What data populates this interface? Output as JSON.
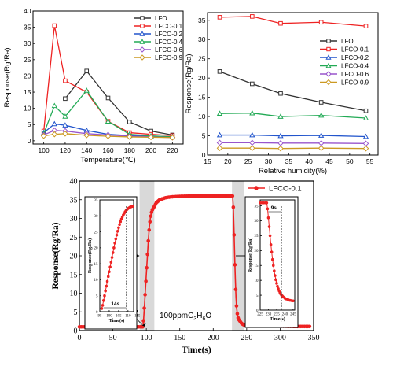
{
  "chart_data": [
    {
      "type": "line",
      "xlabel": "Temperature(℃)",
      "ylabel": "Response(Rg/Ra)",
      "xlim": [
        90,
        230
      ],
      "ylim": [
        -1,
        40
      ],
      "xticks": [
        100,
        120,
        140,
        160,
        180,
        200,
        220
      ],
      "yticks": [
        0,
        5,
        10,
        15,
        20,
        25,
        30,
        35,
        40
      ],
      "legend_position": "top-right",
      "x": [
        100,
        110,
        120,
        140,
        160,
        180,
        200,
        220
      ],
      "series": [
        {
          "name": "LFO",
          "color": "#333333",
          "marker": "square",
          "x": [
            120,
            140,
            160,
            180,
            200,
            220
          ],
          "values": [
            13,
            21.5,
            13.2,
            5.8,
            3,
            1.8
          ]
        },
        {
          "name": "LFCO-0.1",
          "color": "#ee2222",
          "marker": "square",
          "x": [
            100,
            110,
            120,
            140,
            160,
            180,
            200,
            220
          ],
          "values": [
            3,
            35.5,
            18.5,
            15,
            6,
            2.5,
            2,
            1.6
          ]
        },
        {
          "name": "LFCO-0.2",
          "color": "#2255cc",
          "marker": "triangle",
          "x": [
            100,
            110,
            120,
            140,
            160,
            180,
            200,
            220
          ],
          "values": [
            2.5,
            5.2,
            4.8,
            3.2,
            2,
            1.6,
            1.4,
            1.2
          ]
        },
        {
          "name": "LFCO-0.4",
          "color": "#22aa55",
          "marker": "triangle",
          "x": [
            100,
            110,
            120,
            140,
            160,
            180,
            200,
            220
          ],
          "values": [
            2.2,
            10.8,
            7.5,
            15.5,
            6,
            2,
            1.5,
            1.2
          ]
        },
        {
          "name": "LFCO-0.6",
          "color": "#9955cc",
          "marker": "diamond",
          "x": [
            100,
            110,
            120,
            140,
            160,
            180,
            200,
            220
          ],
          "values": [
            1.8,
            3.2,
            3,
            2.2,
            1.8,
            1.4,
            1.2,
            1
          ]
        },
        {
          "name": "LFCO-0.9",
          "color": "#cc9922",
          "marker": "diamond",
          "x": [
            100,
            110,
            120,
            140,
            160,
            180,
            200,
            220
          ],
          "values": [
            1.5,
            2,
            2.2,
            1.7,
            1.4,
            1.2,
            1.1,
            1
          ]
        }
      ]
    },
    {
      "type": "line",
      "xlabel": "Relative humidity(%)",
      "ylabel": "Response(Rg/Ra)",
      "xlim": [
        15,
        57
      ],
      "ylim": [
        0,
        37
      ],
      "xticks": [
        15,
        20,
        25,
        30,
        35,
        40,
        45,
        50,
        55
      ],
      "yticks": [
        0,
        5,
        10,
        15,
        20,
        25,
        30,
        35
      ],
      "legend_position": "right",
      "x": [
        18,
        26,
        33,
        43,
        54
      ],
      "series": [
        {
          "name": "LFO",
          "color": "#333333",
          "marker": "square",
          "values": [
            21.7,
            18.5,
            16,
            13.7,
            11.5
          ]
        },
        {
          "name": "LFCO-0.1",
          "color": "#ee2222",
          "marker": "square",
          "values": [
            35.8,
            36,
            34.2,
            34.5,
            33.5
          ]
        },
        {
          "name": "LFCO-0.2",
          "color": "#2255cc",
          "marker": "triangle",
          "values": [
            5.2,
            5.2,
            5,
            5.1,
            4.8
          ]
        },
        {
          "name": "LFCO-0.4",
          "color": "#22aa55",
          "marker": "triangle",
          "values": [
            10.8,
            10.9,
            10,
            10.3,
            9.6
          ]
        },
        {
          "name": "LFCO-0.6",
          "color": "#9955cc",
          "marker": "diamond",
          "values": [
            3.2,
            3.2,
            3.1,
            3.1,
            3
          ]
        },
        {
          "name": "LFCO-0.9",
          "color": "#cc9922",
          "marker": "diamond",
          "values": [
            1.8,
            1.8,
            1.7,
            1.8,
            1.7
          ]
        }
      ]
    },
    {
      "type": "line",
      "xlabel": "Time(s)",
      "ylabel": "Response(Rg/Ra)",
      "xlim": [
        0,
        350
      ],
      "ylim": [
        0,
        40
      ],
      "xticks": [
        0,
        50,
        100,
        150,
        200,
        250,
        300,
        350
      ],
      "yticks": [
        0,
        5,
        10,
        15,
        20,
        25,
        30,
        35,
        40
      ],
      "legend_position": "top-right",
      "shaded_regions": [
        [
          90,
          112
        ],
        [
          228,
          246
        ]
      ],
      "annotations": [
        {
          "text": "100ppmC3H6O",
          "label_parts": {
            "main": "100ppmC",
            "sub1": "3",
            "mid": "H",
            "sub2": "6",
            "end": "O"
          },
          "target": [
            94,
            1
          ]
        }
      ],
      "series": [
        {
          "name": "LFCO-0.1",
          "color": "#ee2222",
          "marker": "circle",
          "x": [
            0,
            85,
            95,
            96,
            97,
            98,
            99,
            100,
            101,
            102,
            103,
            104,
            105,
            106,
            107,
            108,
            109,
            110,
            112,
            115,
            120,
            130,
            140,
            150,
            175,
            200,
            225,
            229,
            230,
            231,
            232,
            233,
            234,
            235,
            236,
            237,
            238,
            240,
            242,
            244,
            246,
            250,
            275,
            300,
            325,
            345
          ],
          "values": [
            1,
            1,
            1,
            3,
            6,
            9,
            12,
            15,
            18,
            21,
            24,
            26.5,
            28.5,
            30,
            31,
            31.8,
            32.3,
            32.6,
            33.2,
            34.2,
            35,
            35.6,
            35.8,
            35.9,
            36,
            36,
            36,
            36,
            33,
            27,
            20,
            14,
            9,
            6,
            4.5,
            3.5,
            3,
            2.5,
            2,
            1.7,
            1.5,
            1.4,
            1.3,
            1.2,
            1.1,
            1.1
          ]
        }
      ],
      "insets": [
        {
          "xlabel": "Time(s)",
          "ylabel": "Response(Rg/Ra)",
          "xlim": [
            95,
            113
          ],
          "ylim": [
            0,
            35
          ],
          "xticks": [
            95,
            100,
            105,
            110,
            115
          ],
          "xtick_labels": [
            "95",
            "100",
            "105",
            "110",
            "115"
          ],
          "yticks": [
            0,
            5,
            10,
            15,
            20,
            25,
            30,
            35
          ],
          "time_label": "14s",
          "dashed_x": 109,
          "x": [
            96,
            96.5,
            97,
            97.5,
            98,
            98.5,
            99,
            99.5,
            100,
            100.5,
            101,
            101.5,
            102,
            102.5,
            103,
            103.5,
            104,
            104.5,
            105,
            105.5,
            106,
            106.5,
            107,
            107.5,
            108,
            108.5,
            109,
            109.5,
            110,
            110.5,
            111,
            111.5,
            112,
            112.5
          ],
          "values": [
            1,
            2,
            3.5,
            5,
            6.5,
            8,
            9.5,
            11,
            12.5,
            14,
            15.5,
            17,
            18.5,
            20,
            21.5,
            22.8,
            24,
            25.2,
            26.3,
            27.3,
            28.2,
            29,
            29.7,
            30.3,
            30.8,
            31.3,
            31.7,
            32,
            32.3,
            32.5,
            32.7,
            32.8,
            32.9,
            33
          ]
        },
        {
          "xlabel": "Time(s)",
          "ylabel": "Response(Rg/Ra)",
          "xlim": [
            225,
            246
          ],
          "ylim": [
            0,
            37
          ],
          "xticks": [
            225,
            230,
            235,
            240,
            245
          ],
          "xtick_labels": [
            "225",
            "230",
            "235",
            "240",
            "245"
          ],
          "yticks": [
            0,
            5,
            10,
            15,
            20,
            25,
            30,
            35
          ],
          "time_label": "9s",
          "dashed_x": 238,
          "x": [
            225,
            226,
            227,
            228,
            229,
            229.5,
            230,
            230.5,
            231,
            231.5,
            232,
            232.5,
            233,
            233.5,
            234,
            234.5,
            235,
            235.5,
            236,
            236.5,
            237,
            237.5,
            238,
            238.5,
            239,
            240,
            241,
            242,
            243,
            244,
            245
          ],
          "values": [
            36,
            36,
            36,
            36,
            36,
            34,
            31,
            28,
            25,
            22,
            19.5,
            17,
            15,
            13.2,
            11.6,
            10.2,
            9,
            8,
            7.2,
            6.5,
            5.9,
            5.4,
            5,
            4.7,
            4.4,
            4,
            3.7,
            3.5,
            3.3,
            3.2,
            3.1
          ]
        }
      ]
    }
  ]
}
